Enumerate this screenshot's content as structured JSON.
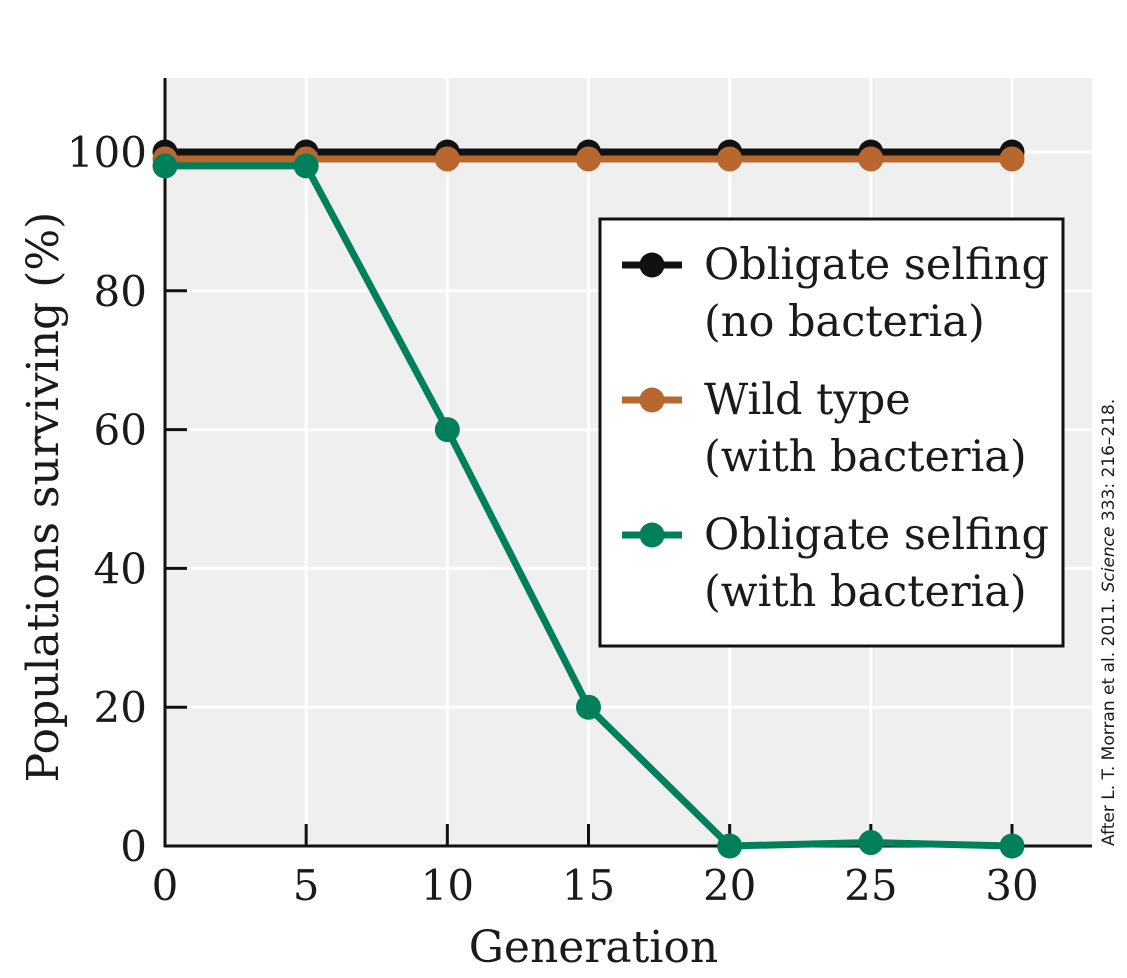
{
  "chart_data": {
    "type": "line",
    "x": [
      0,
      5,
      10,
      15,
      20,
      25,
      30
    ],
    "xlabel": "Generation",
    "ylabel": "Populations surviving (%)",
    "xlim": [
      0,
      33
    ],
    "ylim": [
      0,
      111
    ],
    "xticks": [
      "0",
      "5",
      "10",
      "15",
      "20",
      "25",
      "30"
    ],
    "yticks": [
      "0",
      "20",
      "40",
      "60",
      "80",
      "100"
    ],
    "grid": true,
    "legend_position": "right",
    "series": [
      {
        "name_lines": [
          "Obligate selfing",
          "(no bacteria)"
        ],
        "color": "#111111",
        "values": [
          100,
          100,
          100,
          100,
          100,
          100,
          100
        ]
      },
      {
        "name_lines": [
          "Wild type",
          "(with bacteria)"
        ],
        "color": "#b8682e",
        "values": [
          99,
          99,
          99,
          99,
          99,
          99,
          99
        ]
      },
      {
        "name_lines": [
          "Obligate selfing",
          "(with bacteria)"
        ],
        "color": "#00805a",
        "values": [
          98,
          98,
          60,
          20,
          0,
          0.5,
          0
        ]
      }
    ],
    "colors": {
      "plot_background": "#efefef",
      "grid": "#ffffff"
    },
    "credit": {
      "prefix": "After L. T. Morran et al. 2011. ",
      "journal": "Science",
      "suffix": " 333: 216–218."
    }
  }
}
